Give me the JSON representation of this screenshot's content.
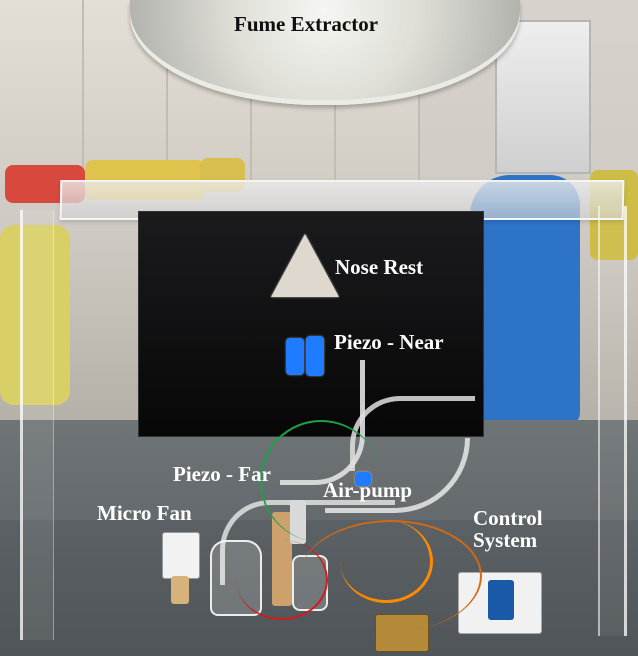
{
  "labels": {
    "fume_extractor": "Fume Extractor",
    "nose_rest": "Nose Rest",
    "piezo_near": "Piezo - Near",
    "piezo_far": "Piezo - Far",
    "air_pump": "Air-pump",
    "micro_fan": "Micro Fan",
    "control_system_line1": "Control",
    "control_system_line2": "System"
  },
  "colors": {
    "label_text_dark": "#0f0f0f",
    "label_text_light": "#ffffff",
    "panel_black": "#070708",
    "acrylic": "#e9e9e9",
    "blue_part": "#1f7bff",
    "table": "#5b6164"
  }
}
